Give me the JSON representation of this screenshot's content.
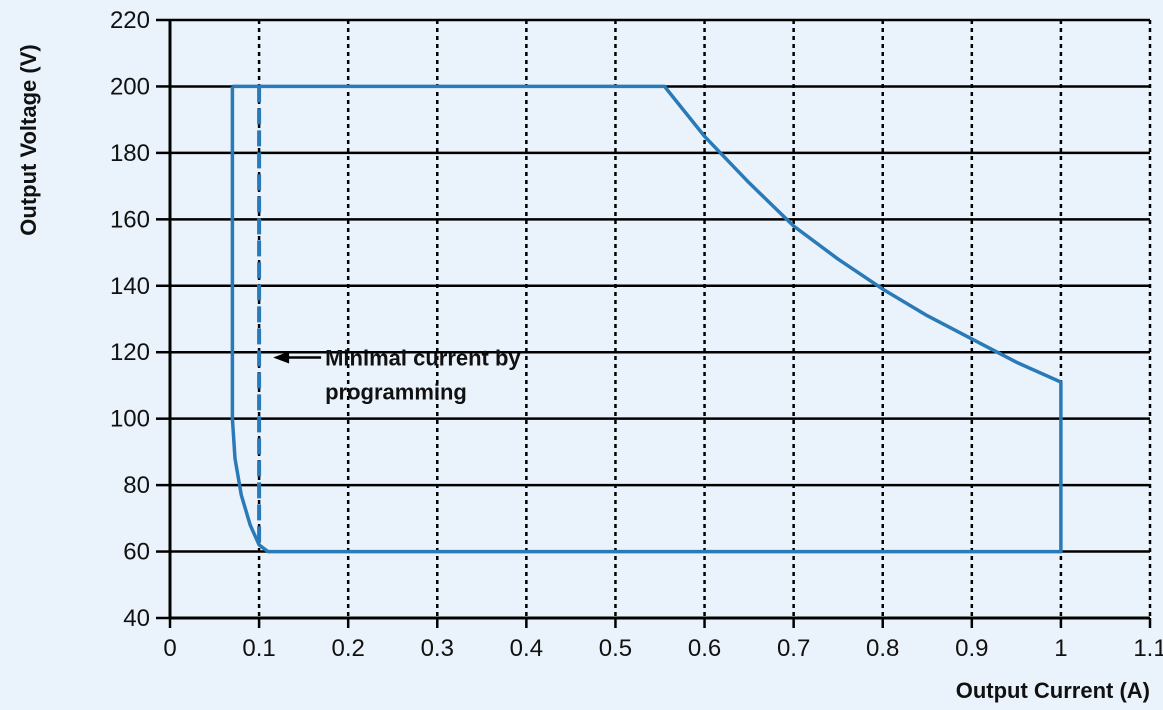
{
  "chart_data": {
    "type": "line",
    "xlabel": "Output Current (A)",
    "ylabel": "Output Voltage (V)",
    "xlim": [
      0,
      1.1
    ],
    "ylim": [
      40,
      220
    ],
    "x_ticks": [
      0,
      0.1,
      0.2,
      0.3,
      0.4,
      0.5,
      0.6,
      0.7,
      0.8,
      0.9,
      1,
      1.1
    ],
    "x_tick_labels": [
      "0",
      "0.1",
      "0.2",
      "0.3",
      "0.4",
      "0.5",
      "0.6",
      "0.7",
      "0.8",
      "0.9",
      "1",
      "1.1"
    ],
    "y_ticks": [
      40,
      60,
      80,
      100,
      120,
      140,
      160,
      180,
      200,
      220
    ],
    "y_tick_labels": [
      "40",
      "60",
      "80",
      "100",
      "120",
      "140",
      "160",
      "180",
      "200",
      "220"
    ],
    "grid": {
      "vertical": "dotted",
      "horizontal": "solid"
    },
    "series": [
      {
        "style": "solid",
        "color": "#2a7ab8",
        "points": [
          [
            0.07,
            200
          ],
          [
            0.555,
            200
          ],
          [
            0.6,
            185
          ],
          [
            0.65,
            171
          ],
          [
            0.7,
            158
          ],
          [
            0.75,
            148
          ],
          [
            0.8,
            139
          ],
          [
            0.85,
            131
          ],
          [
            0.9,
            124
          ],
          [
            0.95,
            117
          ],
          [
            1.0,
            111
          ],
          [
            1.0,
            60
          ],
          [
            0.11,
            60
          ],
          [
            0.1,
            62
          ],
          [
            0.09,
            68
          ],
          [
            0.08,
            77
          ],
          [
            0.073,
            88
          ],
          [
            0.07,
            100
          ],
          [
            0.07,
            200
          ]
        ]
      },
      {
        "style": "dashed",
        "color": "#2a7ab8",
        "points": [
          [
            0.1,
            200
          ],
          [
            0.1,
            62
          ]
        ]
      }
    ],
    "annotations": [
      {
        "lines": [
          "Minimal current by",
          "programming"
        ],
        "arrow_to": [
          0.1,
          116
        ]
      }
    ]
  }
}
